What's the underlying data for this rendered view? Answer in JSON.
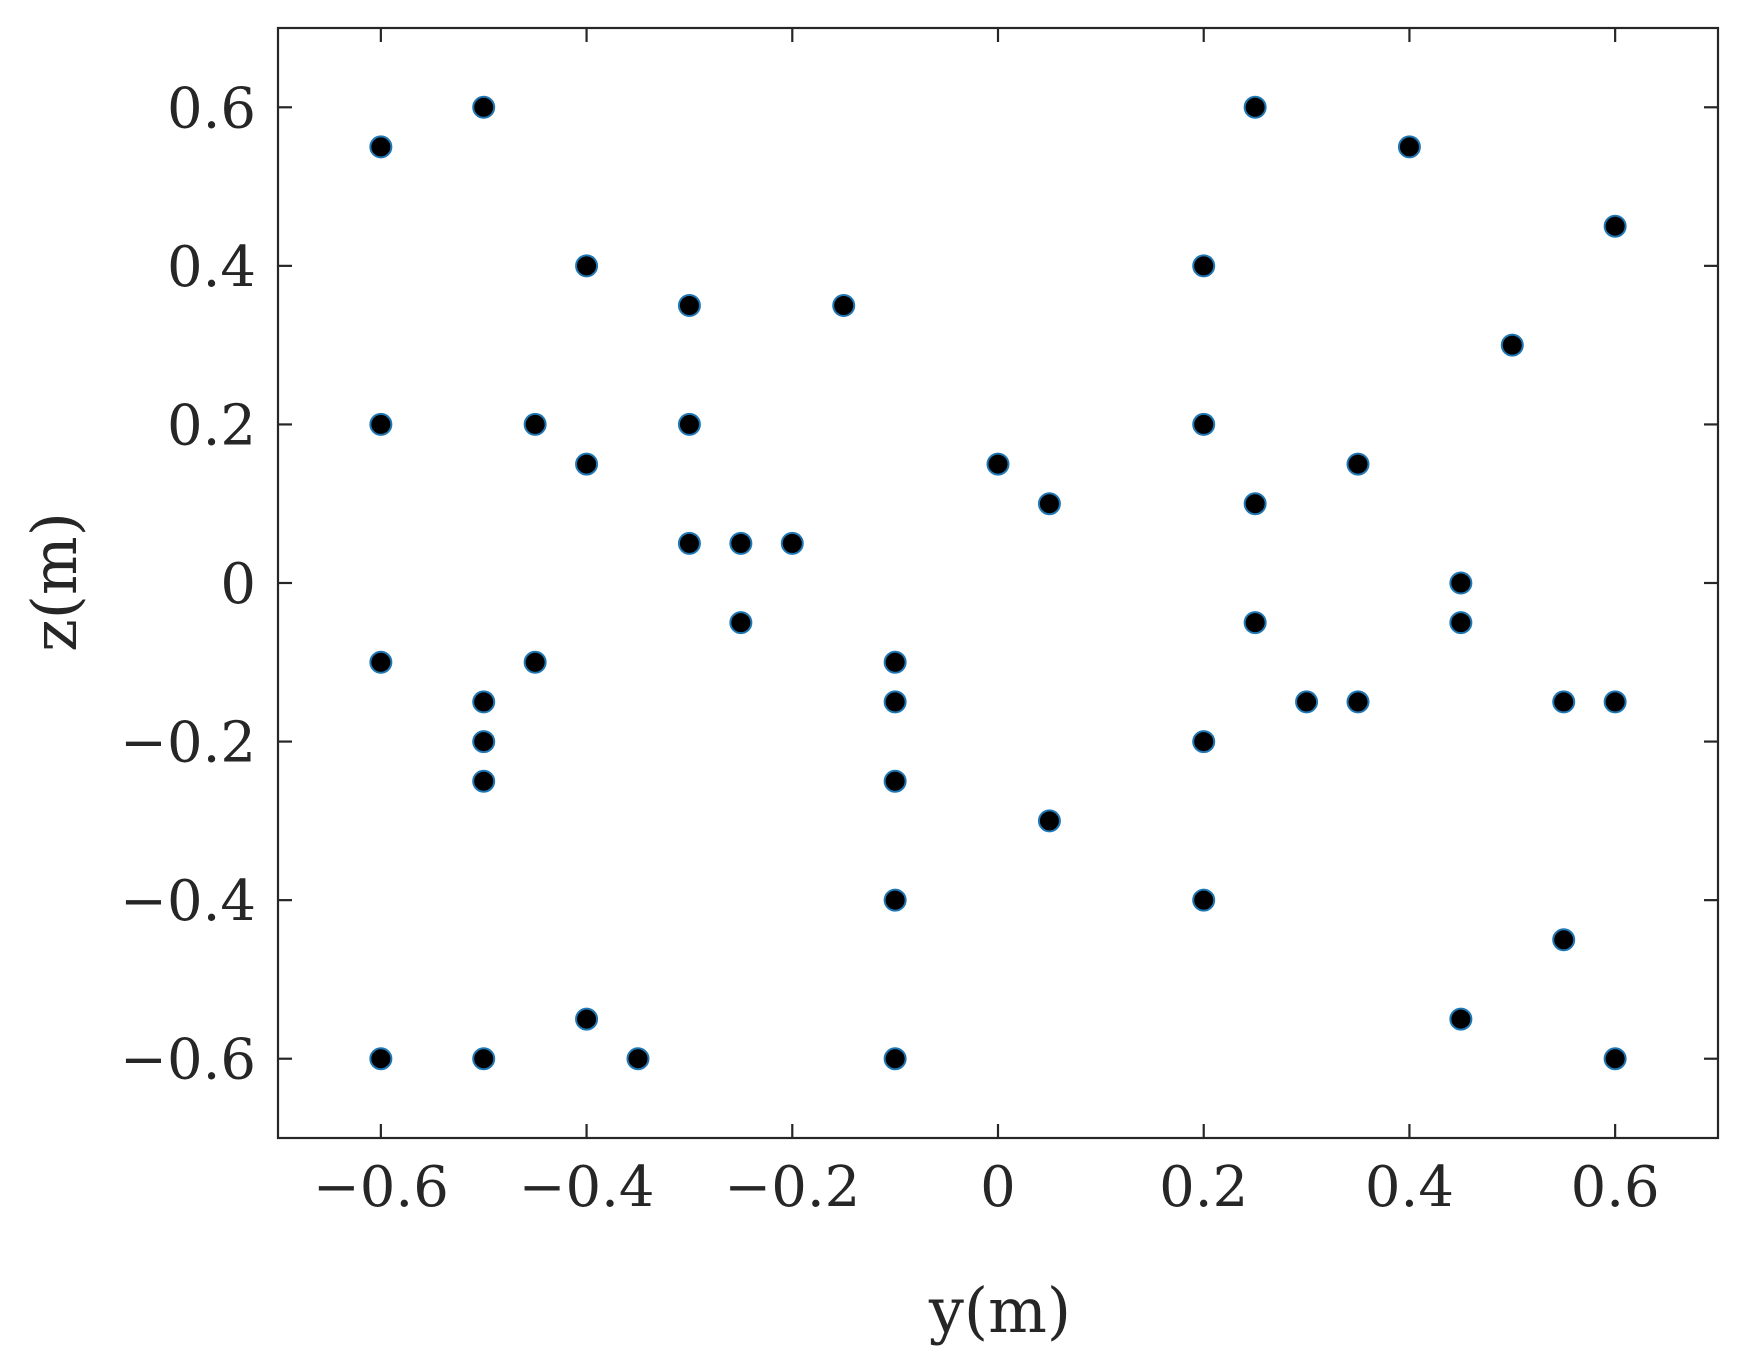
{
  "chart_data": {
    "type": "scatter",
    "title": "",
    "xlabel": "y(m)",
    "ylabel": "z(m)",
    "xlim": [
      -0.7,
      0.7
    ],
    "ylim": [
      -0.7,
      0.7
    ],
    "xticks": [
      -0.6,
      -0.4,
      -0.2,
      0,
      0.2,
      0.4,
      0.6
    ],
    "yticks": [
      -0.6,
      -0.4,
      -0.2,
      0,
      0.2,
      0.4,
      0.6
    ],
    "xtick_labels": [
      "−0.6",
      "−0.4",
      "−0.2",
      "0",
      "0.2",
      "0.4",
      "0.6"
    ],
    "ytick_labels": [
      "−0.6",
      "−0.4",
      "−0.2",
      "0",
      "0.2",
      "0.4",
      "0.6"
    ],
    "grid": false,
    "legend": "none",
    "marker_fill": "#000000",
    "marker_edge": "#1f77b4",
    "series": [
      {
        "points": [
          [
            -0.6,
            0.55
          ],
          [
            -0.5,
            0.6
          ],
          [
            0.25,
            0.6
          ],
          [
            0.4,
            0.55
          ],
          [
            0.6,
            0.45
          ],
          [
            -0.4,
            0.4
          ],
          [
            0.2,
            0.4
          ],
          [
            -0.3,
            0.35
          ],
          [
            -0.15,
            0.35
          ],
          [
            0.5,
            0.3
          ],
          [
            -0.6,
            0.2
          ],
          [
            -0.45,
            0.2
          ],
          [
            -0.3,
            0.2
          ],
          [
            0.2,
            0.2
          ],
          [
            -0.4,
            0.15
          ],
          [
            0.0,
            0.15
          ],
          [
            0.35,
            0.15
          ],
          [
            0.05,
            0.1
          ],
          [
            0.25,
            0.1
          ],
          [
            -0.3,
            0.05
          ],
          [
            -0.25,
            0.05
          ],
          [
            -0.2,
            0.05
          ],
          [
            0.45,
            0.0
          ],
          [
            -0.25,
            -0.05
          ],
          [
            0.25,
            -0.05
          ],
          [
            0.45,
            -0.05
          ],
          [
            -0.6,
            -0.1
          ],
          [
            -0.45,
            -0.1
          ],
          [
            -0.1,
            -0.1
          ],
          [
            -0.5,
            -0.15
          ],
          [
            -0.1,
            -0.15
          ],
          [
            0.3,
            -0.15
          ],
          [
            0.35,
            -0.15
          ],
          [
            0.55,
            -0.15
          ],
          [
            0.6,
            -0.15
          ],
          [
            -0.5,
            -0.2
          ],
          [
            0.2,
            -0.2
          ],
          [
            -0.5,
            -0.25
          ],
          [
            -0.1,
            -0.25
          ],
          [
            0.05,
            -0.3
          ],
          [
            -0.1,
            -0.4
          ],
          [
            0.2,
            -0.4
          ],
          [
            0.55,
            -0.45
          ],
          [
            -0.4,
            -0.55
          ],
          [
            0.45,
            -0.55
          ],
          [
            -0.6,
            -0.6
          ],
          [
            -0.5,
            -0.6
          ],
          [
            -0.35,
            -0.6
          ],
          [
            -0.1,
            -0.6
          ],
          [
            0.6,
            -0.6
          ]
        ]
      }
    ]
  }
}
